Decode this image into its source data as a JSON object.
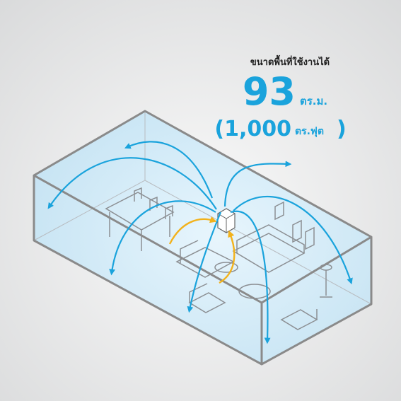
{
  "heading": "ขนาดพื้นที่ใช้งานได้",
  "area": {
    "value": "93",
    "unit": "ตร.ม."
  },
  "area_alt": {
    "value": "(1,000",
    "unit": "ตร.ฟุต",
    "close": ")"
  }
}
